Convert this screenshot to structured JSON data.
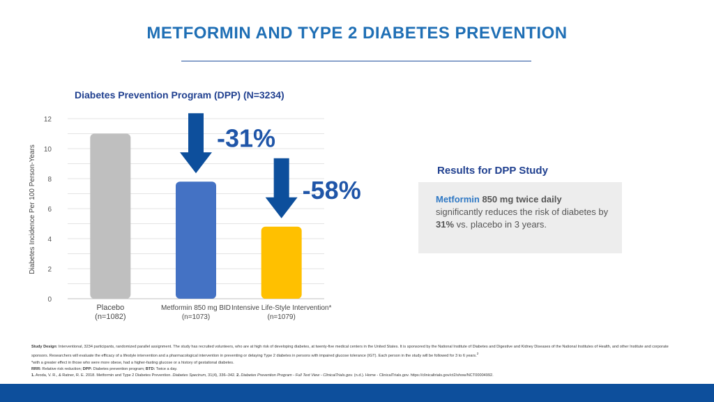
{
  "page_title": "METFORMIN AND TYPE 2 DIABETES PREVENTION",
  "chart_data": {
    "type": "bar",
    "title": "Diabetes Prevention Program (DPP) (N=3234)",
    "ylabel": "Diabetes Incidence Per 100 Person-Years",
    "xlabel": "",
    "ylim": [
      0,
      12
    ],
    "yticks": [
      0,
      2,
      4,
      6,
      8,
      10,
      12
    ],
    "grid": true,
    "categories": [
      {
        "name": "Placebo",
        "sub": "(n=1082)"
      },
      {
        "name": "Metformin 850 mg BID",
        "sub": "(n=1073)"
      },
      {
        "name": "Intensive Life-Style  Intervention*",
        "sub": "(n=1079)"
      }
    ],
    "values": [
      11.0,
      7.8,
      4.8
    ],
    "colors": [
      "#bfbfbf",
      "#4472c4",
      "#ffc000"
    ],
    "annotations": [
      "-31%",
      "-58%"
    ],
    "arrow_color": "#0d4f9c"
  },
  "results": {
    "title": "Results for DPP Study",
    "highlight": "Metformin",
    "bold_dose": " 850 mg twice daily",
    "text_1": "significantly reduces the risk of diabetes by ",
    "pct": "31%",
    "text_2": " vs. placebo in 3 years."
  },
  "footnotes": {
    "design_label": "Study Design",
    "design_text": ": Interventional, 3234 participants, randomized parallel assignment. The study has recruited volunteers, who are at high risk of developing diabetes, at twenty-five medical centers in the United States. It is sponsored by the National Institute of Diabetes and Digestive and Kidney Diseases of the National Institutes of Health, and other Institute and corporate sponsors. Researchers will evaluate the efficacy of a lifestyle intervention and a pharmacological intervention in preventing or delaying Type 2 diabetes in persons with impaired glucose tolerance (IGT). Each person in the study will be followed for 3 to 6 years.",
    "design_sup": "2",
    "note": "*with a greater effect in those who were more obese, had a higher-fasting glucose or a history of gestational diabetes.",
    "abbr_rrr": "RRR:",
    "abbr_rrr_text": " Relative risk reduction; ",
    "abbr_dpp": "DPP:",
    "abbr_dpp_text": " Diabetes prevention program; ",
    "abbr_btd": "BTD:",
    "abbr_btd_text": " Twice a day.",
    "ref1_num": "1.",
    "ref1_text": " Aroda, V. R., & Ratner, R. E. 2018. Metformin and Type 2 Diabetes Prevention. ",
    "ref1_journal": "Diabetes Spectrum,",
    "ref1_tail": " 31(4), 336–342. ",
    "ref2_num": "2.",
    "ref2_title": " Diabetes Prevention Program - Full Text View - ClinicalTrials.gov.",
    "ref2_tail": " (n.d.). Home - ClinicalTrials.gov. https://clinicaltrials.gov/ct2/show/NCT00004992."
  }
}
